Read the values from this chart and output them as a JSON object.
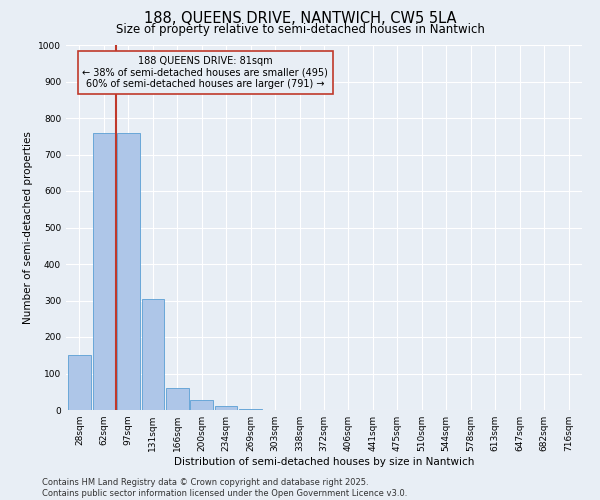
{
  "title_line1": "188, QUEENS DRIVE, NANTWICH, CW5 5LA",
  "title_line2": "Size of property relative to semi-detached houses in Nantwich",
  "xlabel": "Distribution of semi-detached houses by size in Nantwich",
  "ylabel": "Number of semi-detached properties",
  "bar_labels": [
    "28sqm",
    "62sqm",
    "97sqm",
    "131sqm",
    "166sqm",
    "200sqm",
    "234sqm",
    "269sqm",
    "303sqm",
    "338sqm",
    "372sqm",
    "406sqm",
    "441sqm",
    "475sqm",
    "510sqm",
    "544sqm",
    "578sqm",
    "613sqm",
    "647sqm",
    "682sqm",
    "716sqm"
  ],
  "bar_values": [
    150,
    760,
    760,
    305,
    60,
    28,
    10,
    2,
    0,
    0,
    0,
    0,
    0,
    0,
    0,
    0,
    0,
    0,
    0,
    0,
    0
  ],
  "bar_color": "#aec6e8",
  "bar_edge_color": "#5a9fd4",
  "background_color": "#e8eef5",
  "grid_color": "#ffffff",
  "vline_x": 1.5,
  "vline_color": "#c0392b",
  "annotation_box_text": "188 QUEENS DRIVE: 81sqm\n← 38% of semi-detached houses are smaller (495)\n60% of semi-detached houses are larger (791) →",
  "annotation_box_color": "#c0392b",
  "ylim": [
    0,
    1000
  ],
  "yticks": [
    0,
    100,
    200,
    300,
    400,
    500,
    600,
    700,
    800,
    900,
    1000
  ],
  "footer_line1": "Contains HM Land Registry data © Crown copyright and database right 2025.",
  "footer_line2": "Contains public sector information licensed under the Open Government Licence v3.0.",
  "title_fontsize": 10.5,
  "subtitle_fontsize": 8.5,
  "axis_label_fontsize": 7.5,
  "tick_fontsize": 6.5,
  "annotation_fontsize": 7,
  "footer_fontsize": 6
}
